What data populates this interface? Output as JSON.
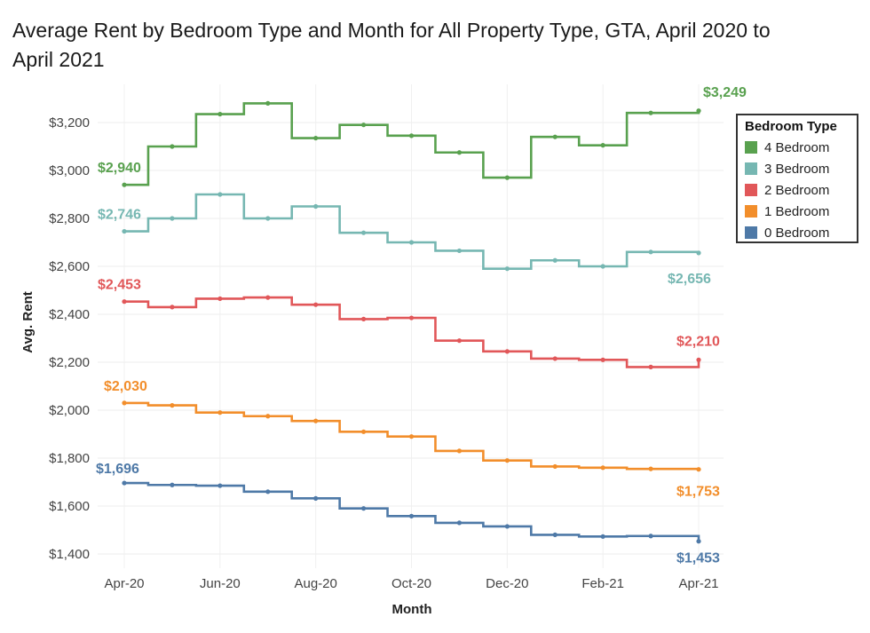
{
  "chart_data": {
    "type": "line",
    "title": "Average Rent by Bedroom Type and Month for All Property Type, GTA, April 2020 to April 2021",
    "xlabel": "Month",
    "ylabel": "Avg. Rent",
    "ylim": [
      1380,
      3330
    ],
    "yticks": [
      1400,
      1600,
      1800,
      2000,
      2200,
      2400,
      2600,
      2800,
      3000,
      3200
    ],
    "ytick_labels": [
      "$1,400",
      "$1,600",
      "$1,800",
      "$2,000",
      "$2,200",
      "$2,400",
      "$2,600",
      "$2,800",
      "$3,000",
      "$3,200"
    ],
    "x": [
      "Apr-20",
      "May-20",
      "Jun-20",
      "Jul-20",
      "Aug-20",
      "Sep-20",
      "Oct-20",
      "Nov-20",
      "Dec-20",
      "Jan-21",
      "Feb-21",
      "Mar-21",
      "Apr-21"
    ],
    "xtick_labels": [
      "Apr-20",
      "Jun-20",
      "Aug-20",
      "Oct-20",
      "Dec-20",
      "Feb-21",
      "Apr-21"
    ],
    "legend_title": "Bedroom Type",
    "legend_position": "right",
    "series": [
      {
        "name": "4 Bedroom",
        "color": "#59a14f",
        "values": [
          2940,
          3100,
          3235,
          3280,
          3135,
          3190,
          3145,
          3075,
          2970,
          3140,
          3105,
          3240,
          3249
        ],
        "start_label": "$2,940",
        "end_label": "$3,249"
      },
      {
        "name": "3 Bedroom",
        "color": "#76b7b2",
        "values": [
          2746,
          2800,
          2900,
          2800,
          2850,
          2740,
          2700,
          2665,
          2590,
          2625,
          2600,
          2660,
          2656
        ],
        "start_label": "$2,746",
        "end_label": "$2,656"
      },
      {
        "name": "2 Bedroom",
        "color": "#e15759",
        "values": [
          2453,
          2430,
          2465,
          2470,
          2440,
          2380,
          2385,
          2290,
          2245,
          2215,
          2210,
          2180,
          2210
        ],
        "start_label": "$2,453",
        "end_label": "$2,210"
      },
      {
        "name": "1 Bedroom",
        "color": "#f28e2b",
        "values": [
          2030,
          2020,
          1990,
          1975,
          1955,
          1910,
          1890,
          1830,
          1790,
          1765,
          1760,
          1755,
          1753
        ],
        "start_label": "$2,030",
        "end_label": "$1,753"
      },
      {
        "name": "0 Bedroom",
        "color": "#4e79a7",
        "values": [
          1696,
          1688,
          1685,
          1660,
          1632,
          1590,
          1558,
          1530,
          1515,
          1480,
          1473,
          1475,
          1453
        ],
        "start_label": "$1,696",
        "end_label": "$1,453"
      }
    ],
    "grid": true
  }
}
